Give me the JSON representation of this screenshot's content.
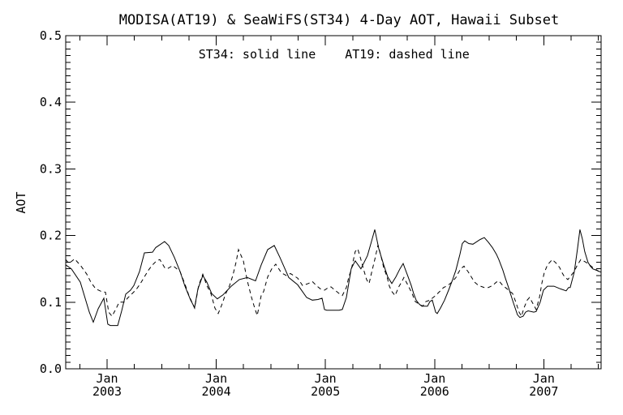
{
  "title": "MODISA(AT19) & SeaWiFS(ST34) 4-Day AOT, Hawaii Subset",
  "legend": {
    "st34": "ST34: solid line",
    "at19": "AT19: dashed line"
  },
  "colors": {
    "line": "#000000",
    "background": "#ffffff"
  },
  "axes": {
    "ylabel": "AOT",
    "y_tick_labels": [
      "0.0",
      "0.1",
      "0.2",
      "0.3",
      "0.4",
      "0.5"
    ],
    "x_tick_labels": [
      {
        "month": "Jan",
        "year": "2003"
      },
      {
        "month": "Jan",
        "year": "2004"
      },
      {
        "month": "Jan",
        "year": "2005"
      },
      {
        "month": "Jan",
        "year": "2006"
      },
      {
        "month": "Jan",
        "year": "2007"
      }
    ]
  },
  "chart_data": {
    "type": "line",
    "title": "MODISA(AT19) & SeaWiFS(ST34) 4-Day AOT, Hawaii Subset",
    "xlabel": "",
    "ylabel": "AOT",
    "xlim": [
      2002.621,
      2007.525
    ],
    "ylim": [
      0.0,
      0.5
    ],
    "x_major_ticks": [
      2003,
      2004,
      2005,
      2006,
      2007
    ],
    "x_minor_step": 0.25,
    "y_major_step": 0.1,
    "y_minor_step": 0.01,
    "grid": false,
    "legend_position": "top-center",
    "series": [
      {
        "name": "ST34",
        "style": "solid",
        "points": [
          [
            2002.621,
            0.156
          ],
          [
            2002.673,
            0.15
          ],
          [
            2002.755,
            0.13
          ],
          [
            2002.837,
            0.085
          ],
          [
            2002.874,
            0.07
          ],
          [
            2002.918,
            0.09
          ],
          [
            2002.97,
            0.106
          ],
          [
            2003.007,
            0.067
          ],
          [
            2003.03,
            0.065
          ],
          [
            2003.097,
            0.065
          ],
          [
            2003.134,
            0.087
          ],
          [
            2003.171,
            0.112
          ],
          [
            2003.215,
            0.118
          ],
          [
            2003.245,
            0.125
          ],
          [
            2003.297,
            0.146
          ],
          [
            2003.342,
            0.174
          ],
          [
            2003.416,
            0.175
          ],
          [
            2003.446,
            0.182
          ],
          [
            2003.527,
            0.191
          ],
          [
            2003.565,
            0.185
          ],
          [
            2003.617,
            0.167
          ],
          [
            2003.669,
            0.146
          ],
          [
            2003.713,
            0.124
          ],
          [
            2003.765,
            0.103
          ],
          [
            2003.802,
            0.092
          ],
          [
            2003.832,
            0.12
          ],
          [
            2003.877,
            0.14
          ],
          [
            2003.914,
            0.13
          ],
          [
            2003.958,
            0.113
          ],
          [
            2004.01,
            0.105
          ],
          [
            2004.062,
            0.111
          ],
          [
            2004.137,
            0.124
          ],
          [
            2004.211,
            0.134
          ],
          [
            2004.285,
            0.137
          ],
          [
            2004.36,
            0.132
          ],
          [
            2004.412,
            0.156
          ],
          [
            2004.471,
            0.179
          ],
          [
            2004.531,
            0.185
          ],
          [
            2004.583,
            0.167
          ],
          [
            2004.664,
            0.137
          ],
          [
            2004.746,
            0.126
          ],
          [
            2004.828,
            0.107
          ],
          [
            2004.88,
            0.103
          ],
          [
            2004.932,
            0.104
          ],
          [
            2004.969,
            0.106
          ],
          [
            2004.991,
            0.089
          ],
          [
            2005.013,
            0.088
          ],
          [
            2005.125,
            0.088
          ],
          [
            2005.155,
            0.089
          ],
          [
            2005.192,
            0.107
          ],
          [
            2005.236,
            0.15
          ],
          [
            2005.273,
            0.162
          ],
          [
            2005.325,
            0.15
          ],
          [
            2005.385,
            0.17
          ],
          [
            2005.42,
            0.19
          ],
          [
            2005.452,
            0.209
          ],
          [
            2005.489,
            0.18
          ],
          [
            2005.534,
            0.156
          ],
          [
            2005.571,
            0.138
          ],
          [
            2005.608,
            0.128
          ],
          [
            2005.645,
            0.138
          ],
          [
            2005.682,
            0.15
          ],
          [
            2005.712,
            0.158
          ],
          [
            2005.734,
            0.148
          ],
          [
            2005.757,
            0.138
          ],
          [
            2005.786,
            0.125
          ],
          [
            2005.808,
            0.113
          ],
          [
            2005.831,
            0.103
          ],
          [
            2005.86,
            0.097
          ],
          [
            2005.883,
            0.094
          ],
          [
            2005.935,
            0.094
          ],
          [
            2005.957,
            0.101
          ],
          [
            2005.979,
            0.103
          ],
          [
            2006.009,
            0.085
          ],
          [
            2006.024,
            0.083
          ],
          [
            2006.053,
            0.091
          ],
          [
            2006.091,
            0.103
          ],
          [
            2006.128,
            0.118
          ],
          [
            2006.165,
            0.134
          ],
          [
            2006.195,
            0.148
          ],
          [
            2006.232,
            0.172
          ],
          [
            2006.254,
            0.188
          ],
          [
            2006.276,
            0.192
          ],
          [
            2006.313,
            0.188
          ],
          [
            2006.351,
            0.187
          ],
          [
            2006.417,
            0.194
          ],
          [
            2006.455,
            0.197
          ],
          [
            2006.492,
            0.19
          ],
          [
            2006.529,
            0.182
          ],
          [
            2006.566,
            0.172
          ],
          [
            2006.588,
            0.164
          ],
          [
            2006.625,
            0.148
          ],
          [
            2006.648,
            0.136
          ],
          [
            2006.677,
            0.122
          ],
          [
            2006.7,
            0.11
          ],
          [
            2006.722,
            0.099
          ],
          [
            2006.759,
            0.081
          ],
          [
            2006.781,
            0.077
          ],
          [
            2006.811,
            0.079
          ],
          [
            2006.833,
            0.085
          ],
          [
            2006.856,
            0.087
          ],
          [
            2006.908,
            0.085
          ],
          [
            2006.93,
            0.086
          ],
          [
            2006.967,
            0.1
          ],
          [
            2006.997,
            0.118
          ],
          [
            2007.034,
            0.124
          ],
          [
            2007.093,
            0.124
          ],
          [
            2007.153,
            0.12
          ],
          [
            2007.205,
            0.117
          ],
          [
            2007.227,
            0.122
          ],
          [
            2007.242,
            0.122
          ],
          [
            2007.279,
            0.145
          ],
          [
            2007.309,
            0.18
          ],
          [
            2007.331,
            0.209
          ],
          [
            2007.353,
            0.195
          ],
          [
            2007.375,
            0.176
          ],
          [
            2007.405,
            0.16
          ],
          [
            2007.427,
            0.154
          ],
          [
            2007.449,
            0.15
          ],
          [
            2007.479,
            0.148
          ],
          [
            2007.524,
            0.145
          ]
        ]
      },
      {
        "name": "AT19",
        "style": "dashed",
        "points": [
          [
            2002.621,
            0.164
          ],
          [
            2002.651,
            0.158
          ],
          [
            2002.703,
            0.165
          ],
          [
            2002.762,
            0.154
          ],
          [
            2002.814,
            0.142
          ],
          [
            2002.851,
            0.13
          ],
          [
            2002.896,
            0.12
          ],
          [
            2002.948,
            0.116
          ],
          [
            2002.985,
            0.115
          ],
          [
            2003.015,
            0.085
          ],
          [
            2003.045,
            0.079
          ],
          [
            2003.082,
            0.09
          ],
          [
            2003.111,
            0.1
          ],
          [
            2003.156,
            0.1
          ],
          [
            2003.193,
            0.107
          ],
          [
            2003.23,
            0.113
          ],
          [
            2003.267,
            0.119
          ],
          [
            2003.305,
            0.128
          ],
          [
            2003.342,
            0.138
          ],
          [
            2003.379,
            0.148
          ],
          [
            2003.416,
            0.156
          ],
          [
            2003.453,
            0.162
          ],
          [
            2003.483,
            0.164
          ],
          [
            2003.527,
            0.152
          ],
          [
            2003.55,
            0.15
          ],
          [
            2003.602,
            0.155
          ],
          [
            2003.669,
            0.146
          ],
          [
            2003.713,
            0.127
          ],
          [
            2003.75,
            0.11
          ],
          [
            2003.802,
            0.091
          ],
          [
            2003.839,
            0.125
          ],
          [
            2003.877,
            0.142
          ],
          [
            2003.914,
            0.125
          ],
          [
            2003.951,
            0.113
          ],
          [
            2003.988,
            0.091
          ],
          [
            2004.018,
            0.083
          ],
          [
            2004.048,
            0.095
          ],
          [
            2004.085,
            0.112
          ],
          [
            2004.122,
            0.125
          ],
          [
            2004.152,
            0.14
          ],
          [
            2004.181,
            0.16
          ],
          [
            2004.204,
            0.179
          ],
          [
            2004.248,
            0.162
          ],
          [
            2004.285,
            0.132
          ],
          [
            2004.323,
            0.107
          ],
          [
            2004.352,
            0.091
          ],
          [
            2004.375,
            0.08
          ],
          [
            2004.412,
            0.11
          ],
          [
            2004.434,
            0.116
          ],
          [
            2004.471,
            0.138
          ],
          [
            2004.508,
            0.15
          ],
          [
            2004.545,
            0.157
          ],
          [
            2004.597,
            0.144
          ],
          [
            2004.642,
            0.14
          ],
          [
            2004.679,
            0.143
          ],
          [
            2004.746,
            0.136
          ],
          [
            2004.791,
            0.125
          ],
          [
            2004.843,
            0.128
          ],
          [
            2004.88,
            0.131
          ],
          [
            2004.917,
            0.125
          ],
          [
            2004.954,
            0.12
          ],
          [
            2004.991,
            0.118
          ],
          [
            2005.028,
            0.122
          ],
          [
            2005.051,
            0.123
          ],
          [
            2005.088,
            0.118
          ],
          [
            2005.125,
            0.113
          ],
          [
            2005.155,
            0.11
          ],
          [
            2005.192,
            0.122
          ],
          [
            2005.214,
            0.138
          ],
          [
            2005.236,
            0.148
          ],
          [
            2005.273,
            0.176
          ],
          [
            2005.296,
            0.18
          ],
          [
            2005.325,
            0.164
          ],
          [
            2005.348,
            0.15
          ],
          [
            2005.377,
            0.134
          ],
          [
            2005.4,
            0.128
          ],
          [
            2005.422,
            0.144
          ],
          [
            2005.452,
            0.164
          ],
          [
            2005.482,
            0.186
          ],
          [
            2005.511,
            0.168
          ],
          [
            2005.534,
            0.152
          ],
          [
            2005.564,
            0.138
          ],
          [
            2005.586,
            0.124
          ],
          [
            2005.608,
            0.116
          ],
          [
            2005.638,
            0.11
          ],
          [
            2005.675,
            0.124
          ],
          [
            2005.697,
            0.13
          ],
          [
            2005.719,
            0.137
          ],
          [
            2005.757,
            0.125
          ],
          [
            2005.794,
            0.113
          ],
          [
            2005.823,
            0.101
          ],
          [
            2005.86,
            0.097
          ],
          [
            2005.89,
            0.094
          ],
          [
            2005.92,
            0.101
          ],
          [
            2005.957,
            0.103
          ],
          [
            2006.009,
            0.11
          ],
          [
            2006.046,
            0.116
          ],
          [
            2006.083,
            0.122
          ],
          [
            2006.12,
            0.125
          ],
          [
            2006.158,
            0.13
          ],
          [
            2006.195,
            0.137
          ],
          [
            2006.217,
            0.144
          ],
          [
            2006.239,
            0.15
          ],
          [
            2006.269,
            0.154
          ],
          [
            2006.306,
            0.146
          ],
          [
            2006.328,
            0.14
          ],
          [
            2006.366,
            0.13
          ],
          [
            2006.403,
            0.125
          ],
          [
            2006.455,
            0.122
          ],
          [
            2006.492,
            0.122
          ],
          [
            2006.529,
            0.125
          ],
          [
            2006.566,
            0.13
          ],
          [
            2006.588,
            0.132
          ],
          [
            2006.625,
            0.125
          ],
          [
            2006.648,
            0.122
          ],
          [
            2006.677,
            0.118
          ],
          [
            2006.714,
            0.113
          ],
          [
            2006.744,
            0.1
          ],
          [
            2006.774,
            0.085
          ],
          [
            2006.796,
            0.079
          ],
          [
            2006.818,
            0.091
          ],
          [
            2006.848,
            0.103
          ],
          [
            2006.87,
            0.107
          ],
          [
            2006.9,
            0.098
          ],
          [
            2006.93,
            0.089
          ],
          [
            2006.96,
            0.107
          ],
          [
            2006.982,
            0.128
          ],
          [
            2007.004,
            0.144
          ],
          [
            2007.034,
            0.156
          ],
          [
            2007.078,
            0.164
          ],
          [
            2007.116,
            0.158
          ],
          [
            2007.145,
            0.152
          ],
          [
            2007.168,
            0.144
          ],
          [
            2007.19,
            0.138
          ],
          [
            2007.22,
            0.134
          ],
          [
            2007.249,
            0.14
          ],
          [
            2007.279,
            0.146
          ],
          [
            2007.302,
            0.154
          ],
          [
            2007.339,
            0.164
          ],
          [
            2007.375,
            0.161
          ],
          [
            2007.405,
            0.158
          ],
          [
            2007.449,
            0.152
          ],
          [
            2007.487,
            0.148
          ],
          [
            2007.524,
            0.144
          ]
        ]
      }
    ]
  }
}
